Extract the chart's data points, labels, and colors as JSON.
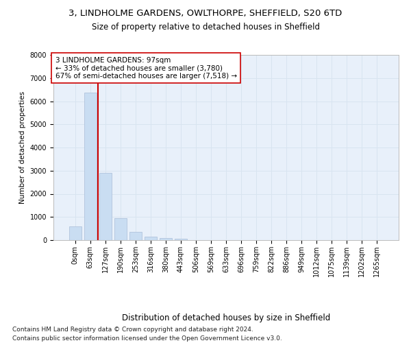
{
  "title1": "3, LINDHOLME GARDENS, OWLTHORPE, SHEFFIELD, S20 6TD",
  "title2": "Size of property relative to detached houses in Sheffield",
  "xlabel": "Distribution of detached houses by size in Sheffield",
  "ylabel": "Number of detached properties",
  "categories": [
    "0sqm",
    "63sqm",
    "127sqm",
    "190sqm",
    "253sqm",
    "316sqm",
    "380sqm",
    "443sqm",
    "506sqm",
    "569sqm",
    "633sqm",
    "696sqm",
    "759sqm",
    "822sqm",
    "886sqm",
    "949sqm",
    "1012sqm",
    "1075sqm",
    "1139sqm",
    "1202sqm",
    "1265sqm"
  ],
  "bar_values": [
    590,
    6380,
    2900,
    960,
    350,
    155,
    90,
    55,
    0,
    0,
    0,
    0,
    0,
    0,
    0,
    0,
    0,
    0,
    0,
    0,
    0
  ],
  "bar_color": "#c9ddf2",
  "bar_edgecolor": "#aabdd8",
  "vline_color": "#cc0000",
  "annotation_text": "3 LINDHOLME GARDENS: 97sqm\n← 33% of detached houses are smaller (3,780)\n67% of semi-detached houses are larger (7,518) →",
  "annotation_box_edgecolor": "#cc0000",
  "annotation_box_facecolor": "#ffffff",
  "ylim": [
    0,
    8000
  ],
  "yticks": [
    0,
    1000,
    2000,
    3000,
    4000,
    5000,
    6000,
    7000,
    8000
  ],
  "grid_color": "#d8e4f0",
  "background_color": "#e8f0fa",
  "footer_line1": "Contains HM Land Registry data © Crown copyright and database right 2024.",
  "footer_line2": "Contains public sector information licensed under the Open Government Licence v3.0.",
  "title1_fontsize": 9.5,
  "title2_fontsize": 8.5,
  "xlabel_fontsize": 8.5,
  "ylabel_fontsize": 7.5,
  "tick_fontsize": 7,
  "footer_fontsize": 6.5,
  "annotation_fontsize": 7.5
}
